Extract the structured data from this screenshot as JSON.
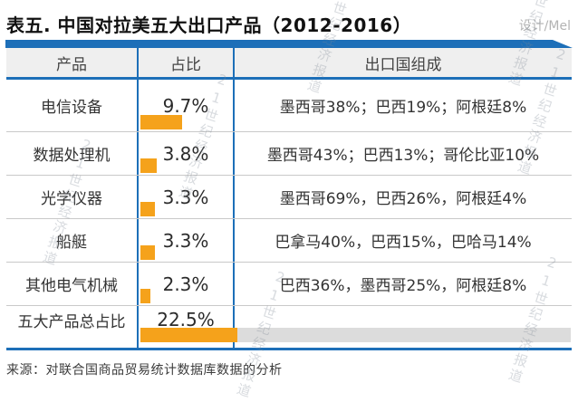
{
  "page": {
    "title": "表五. 中国对拉美五大出口产品（2012-2016）",
    "credit": "设计/Mel",
    "source": "来源：对联合国商品贸易统计数据库数据的分析",
    "watermark": "21世纪经济报道"
  },
  "colors": {
    "blue": "#1d6fb8",
    "orange": "#f5a21b",
    "header_bg": "#efefef",
    "row_divider": "#c9c9c9",
    "track_gray": "#dcdcdc"
  },
  "table": {
    "headers": [
      "产品",
      "占比",
      "出口国组成"
    ],
    "rows": [
      {
        "product": "电信设备",
        "share": "9.7%",
        "share_value": 9.7,
        "composition": "墨西哥38%；巴西19%；阿根廷8%"
      },
      {
        "product": "数据处理机",
        "share": "3.8%",
        "share_value": 3.8,
        "composition": "墨西哥43%；巴西13%；哥伦比亚10%"
      },
      {
        "product": "光学仪器",
        "share": "3.3%",
        "share_value": 3.3,
        "composition": "墨西哥69%，巴西26%，阿根廷4%"
      },
      {
        "product": "船艇",
        "share": "3.3%",
        "share_value": 3.3,
        "composition": "巴拿马40%，巴西15%，巴哈马14%"
      },
      {
        "product": "其他电气机械",
        "share": "2.3%",
        "share_value": 2.3,
        "composition": "巴西36%，墨西哥25%，阿根廷8%"
      },
      {
        "product": "五大产品总占比",
        "share": "22.5%",
        "share_value": 22.5,
        "composition": ""
      }
    ]
  },
  "chart_data": {
    "type": "table",
    "title": "表五. 中国对拉美五大出口产品（2012-2016）",
    "columns": [
      "产品",
      "占比",
      "出口国组成"
    ],
    "rows": [
      [
        "电信设备",
        "9.7%",
        "墨西哥38%；巴西19%；阿根廷8%"
      ],
      [
        "数据处理机",
        "3.8%",
        "墨西哥43%；巴西13%；哥伦比亚10%"
      ],
      [
        "光学仪器",
        "3.3%",
        "墨西哥69%，巴西26%，阿根廷4%"
      ],
      [
        "船艇",
        "3.3%",
        "巴拿马40%，巴西15%，巴哈马14%"
      ],
      [
        "其他电气机械",
        "2.3%",
        "巴西36%，墨西哥25%，阿根廷8%"
      ],
      [
        "五大产品总占比",
        "22.5%",
        ""
      ]
    ],
    "embedded_bars": {
      "type": "bar",
      "orientation": "horizontal",
      "categories": [
        "电信设备",
        "数据处理机",
        "光学仪器",
        "船艇",
        "其他电气机械",
        "五大产品总占比"
      ],
      "values": [
        9.7,
        3.8,
        3.3,
        3.3,
        2.3,
        22.5
      ],
      "axis_max": 100,
      "bar_color": "#f5a21b",
      "note": "占比列下方为橙色水平条；最后一行附灰色100%底轨"
    }
  }
}
